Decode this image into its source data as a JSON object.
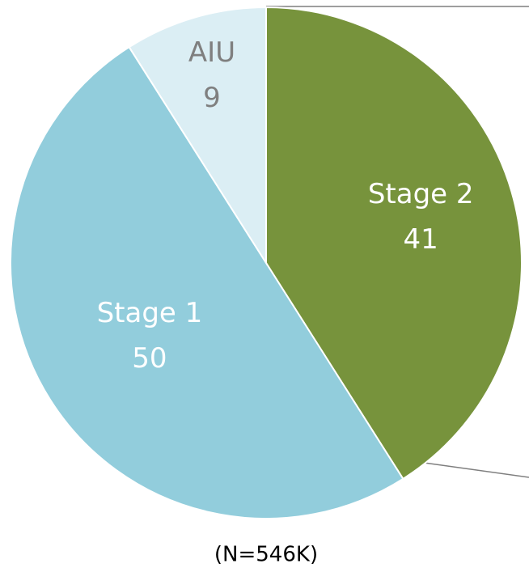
{
  "chart_data": {
    "type": "pie",
    "categories": [
      "Stage 2",
      "Stage 1",
      "AIU"
    ],
    "values": [
      41,
      50,
      9
    ],
    "colors": [
      "#77933c",
      "#92cddc",
      "#dbeef4"
    ],
    "label_colors": [
      "#ffffff",
      "#ffffff",
      "#7f7f7f"
    ],
    "note": "(N=546K)"
  }
}
